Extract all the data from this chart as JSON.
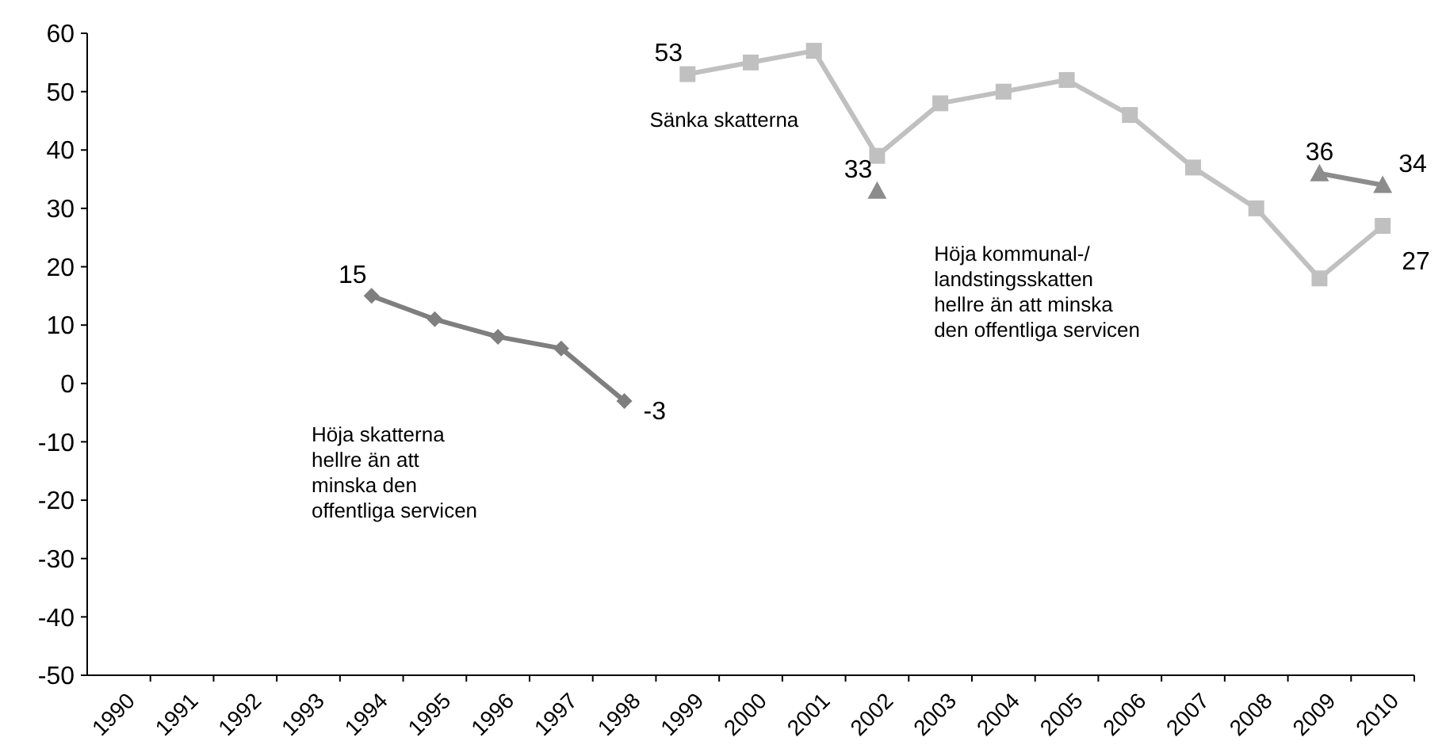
{
  "chart_data": {
    "type": "line",
    "categories": [
      "1990",
      "1991",
      "1992",
      "1993",
      "1994",
      "1995",
      "1996",
      "1997",
      "1998",
      "1999",
      "2000",
      "2001",
      "2002",
      "2003",
      "2004",
      "2005",
      "2006",
      "2007",
      "2008",
      "2009",
      "2010"
    ],
    "ylim": [
      -50,
      60
    ],
    "yticks": [
      -50,
      -40,
      -30,
      -20,
      -10,
      0,
      10,
      20,
      30,
      40,
      50,
      60
    ],
    "grid": false,
    "annotations": [
      "Höja skatterna hellre än att minska den offentliga servicen",
      "Sänka skatterna",
      "Höja kommunal-/landstingsskatten hellre än att minska den offentliga servicen"
    ],
    "series": [
      {
        "color": "#7f7f7f",
        "marker": "diamond",
        "values": [
          null,
          null,
          null,
          null,
          15,
          11,
          8,
          6,
          -3,
          null,
          null,
          null,
          null,
          null,
          null,
          null,
          null,
          null,
          null,
          null,
          null
        ],
        "value_labels": [
          null,
          null,
          null,
          null,
          "15",
          null,
          null,
          null,
          "-3",
          null,
          null,
          null,
          null,
          null,
          null,
          null,
          null,
          null,
          null,
          null,
          null
        ]
      },
      {
        "color": "#c0c0c0",
        "marker": "square",
        "values": [
          null,
          null,
          null,
          null,
          null,
          null,
          null,
          null,
          null,
          53,
          55,
          57,
          39,
          48,
          50,
          52,
          46,
          37,
          30,
          18,
          27
        ],
        "value_labels": [
          null,
          null,
          null,
          null,
          null,
          null,
          null,
          null,
          null,
          "53",
          null,
          null,
          null,
          null,
          null,
          null,
          null,
          null,
          null,
          null,
          "27"
        ]
      },
      {
        "color": "#8c8c8c",
        "marker": "triangle",
        "values": [
          null,
          null,
          null,
          null,
          null,
          null,
          null,
          null,
          null,
          null,
          null,
          null,
          33,
          null,
          null,
          null,
          null,
          null,
          null,
          36,
          34
        ],
        "value_labels": [
          null,
          null,
          null,
          null,
          null,
          null,
          null,
          null,
          null,
          null,
          null,
          null,
          "33",
          null,
          null,
          null,
          null,
          null,
          null,
          "36",
          "34"
        ]
      }
    ]
  }
}
